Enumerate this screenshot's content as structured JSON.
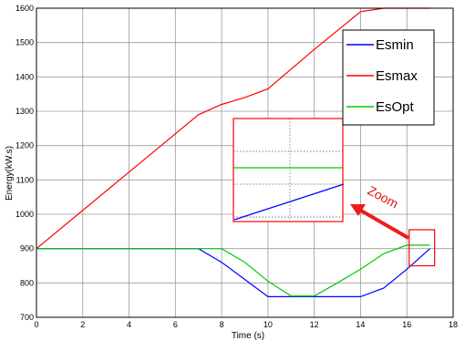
{
  "chart_data": {
    "type": "line",
    "xlabel": "Time (s)",
    "ylabel": "Energy(kW.s)",
    "xlim": [
      0,
      18
    ],
    "ylim": [
      700,
      1600
    ],
    "xticks": [
      0,
      2,
      4,
      6,
      8,
      10,
      12,
      14,
      16,
      18
    ],
    "yticks": [
      700,
      800,
      900,
      1000,
      1100,
      1200,
      1300,
      1400,
      1500,
      1600
    ],
    "grid": true,
    "legend_position": "top-right",
    "series": [
      {
        "name": "Esmin",
        "color": "#0000ff",
        "x": [
          0,
          7,
          8,
          10,
          12,
          14,
          15,
          16,
          17
        ],
        "y": [
          900,
          900,
          860,
          760,
          760,
          760,
          785,
          840,
          900
        ]
      },
      {
        "name": "Esmax",
        "color": "#ff0000",
        "x": [
          0,
          7,
          8,
          9,
          10,
          12,
          14,
          15,
          17
        ],
        "y": [
          900,
          1290,
          1320,
          1340,
          1365,
          1480,
          1590,
          1600,
          1600
        ]
      },
      {
        "name": "EsOpt",
        "color": "#00cc00",
        "x": [
          0,
          8,
          9,
          10,
          11,
          12,
          13,
          14,
          15,
          16,
          17
        ],
        "y": [
          900,
          900,
          860,
          805,
          762,
          762,
          800,
          840,
          885,
          910,
          910
        ]
      }
    ],
    "annotations": [
      {
        "text": "Zoom",
        "color": "#ff0000"
      }
    ],
    "zoom_region": {
      "x": [
        16.1,
        17.2
      ],
      "y": [
        850,
        955
      ]
    }
  }
}
